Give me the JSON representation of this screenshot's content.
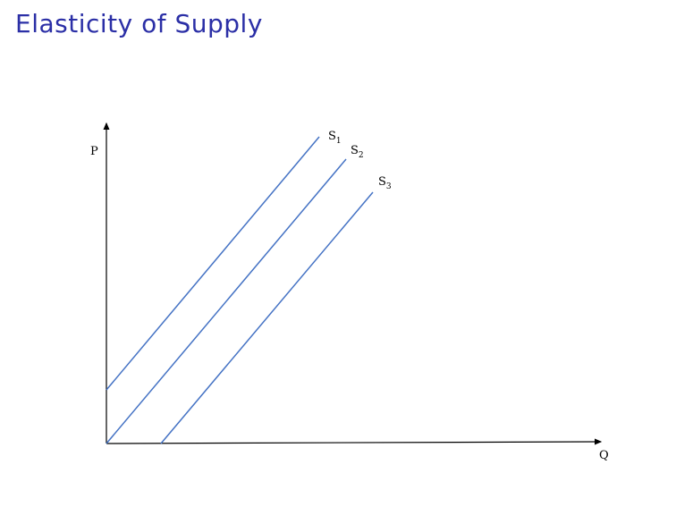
{
  "title": "Elasticity of Supply",
  "axes": {
    "y_label": "P",
    "x_label": "Q"
  },
  "curves": [
    {
      "letter": "S",
      "subscript": "1"
    },
    {
      "letter": "S",
      "subscript": "2"
    },
    {
      "letter": "S",
      "subscript": "3"
    }
  ],
  "colors": {
    "title": "#2b2fa6",
    "curve": "#4472c4",
    "axis": "#000000"
  }
}
